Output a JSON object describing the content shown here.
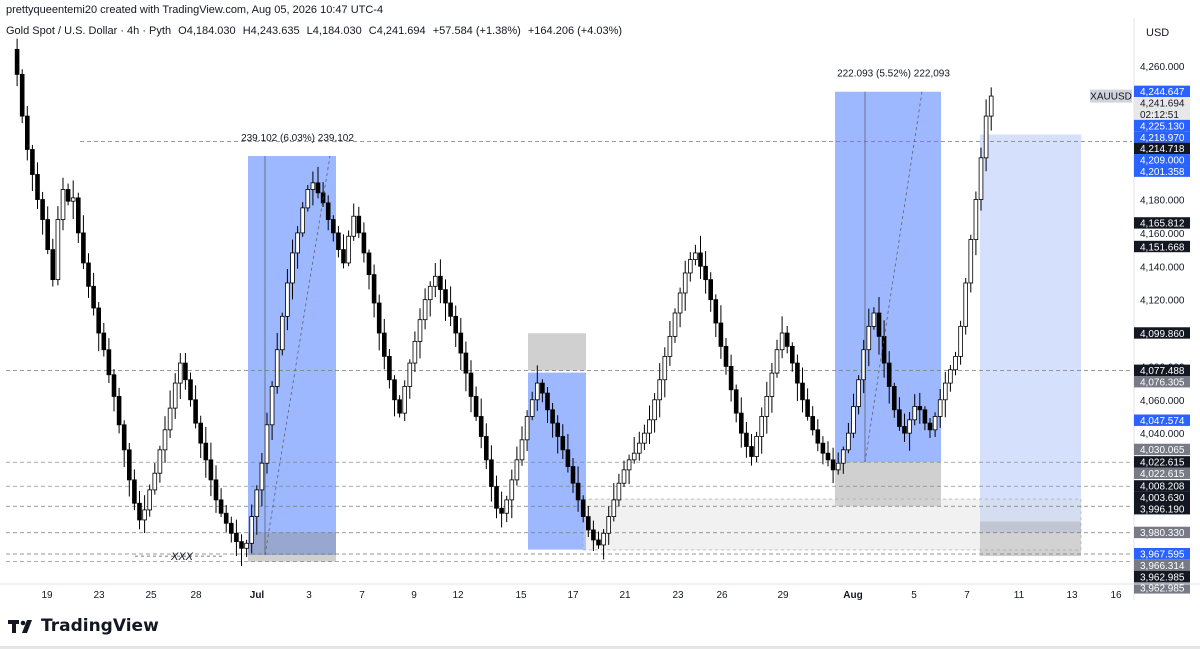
{
  "header": {
    "created_line": "prettyqueentemi20 created with TradingView.com, Aug 05, 2026 10:47 UTC-4",
    "symbol_title": "Gold Spot / U.S. Dollar · 4h · Pyth",
    "open": "O4,184.030",
    "high": "H4,243.635",
    "low": "L4,184.030",
    "close": "C4,241.694",
    "change": "+57.584 (+1.38%)",
    "extra_change": "+164.206 (+4.03%)"
  },
  "currency": "USD",
  "logo_text": "TradingView",
  "colors": {
    "up_candle": "#ffffff",
    "down_candle": "#000000",
    "candle_outline": "#000000",
    "range_blue": "#2962ff",
    "range_light_blue": "#b3c6fb",
    "zone_gray": "#8f8f8f",
    "label_blue": "#2962ff",
    "label_black": "#131722",
    "label_gray": "#787b86"
  },
  "chart_data": {
    "type": "candlestick",
    "timeframe": "4h",
    "symbol": "XAUUSD",
    "x_tick_labels": [
      "19",
      "23",
      "25",
      "28",
      "Jul",
      "3",
      "7",
      "9",
      "12",
      "15",
      "17",
      "21",
      "23",
      "26",
      "29",
      "Aug",
      "5",
      "7",
      "11",
      "13",
      "16"
    ],
    "y_axis": {
      "ticks": [
        4260,
        4240,
        4220,
        4200,
        4180,
        4160,
        4140,
        4120,
        4100,
        4080,
        4060,
        4040,
        4020,
        4000,
        3980
      ],
      "tick_labels": [
        "4,260.000",
        "4,240.000",
        "4,220.000",
        "4,200.000",
        "4,180.000",
        "4,160.000",
        "4,140.000",
        "4,120.000",
        "4,100.000",
        "4,080.000",
        "4,060.000",
        "4,040.000",
        "4,020.000",
        "4,000.000",
        "3,980.000"
      ],
      "range": [
        3952,
        4278
      ]
    },
    "price_labels": [
      {
        "value": 4244.647,
        "text": "4,244.647",
        "style": "blue"
      },
      {
        "value": 4241.694,
        "text": "4,241.694",
        "style": "current"
      },
      {
        "value": 4236.5,
        "text": "02:12:51",
        "style": "current"
      },
      {
        "value": 4225.13,
        "text": "4,225.130",
        "style": "blue"
      },
      {
        "value": 4218.97,
        "text": "4,218.970",
        "style": "blue"
      },
      {
        "value": 4214.718,
        "text": "4,214.718",
        "style": "black"
      },
      {
        "value": 4209.0,
        "text": "4,209.000",
        "style": "blue"
      },
      {
        "value": 4201.358,
        "text": "4,201.358",
        "style": "blue"
      },
      {
        "value": 4165.812,
        "text": "4,165.812",
        "style": "black"
      },
      {
        "value": 4151.668,
        "text": "4,151.668",
        "style": "black"
      },
      {
        "value": 4099.86,
        "text": "4,099.860",
        "style": "black"
      },
      {
        "value": 4077.488,
        "text": "4,077.488",
        "style": "black"
      },
      {
        "value": 4076.305,
        "text": "4,076.305",
        "style": "gray"
      },
      {
        "value": 4047.574,
        "text": "4,047.574",
        "style": "blue"
      },
      {
        "value": 4030.065,
        "text": "4,030.065",
        "style": "gray"
      },
      {
        "value": 4022.615,
        "text": "4,022.615",
        "style": "black"
      },
      {
        "value": 4022.615,
        "text": "4,022.615",
        "style": "gray"
      },
      {
        "value": 4008.208,
        "text": "4,008.208",
        "style": "black"
      },
      {
        "value": 4003.63,
        "text": "4,003.630",
        "style": "black"
      },
      {
        "value": 3996.19,
        "text": "3,996.190",
        "style": "black"
      },
      {
        "value": 3980.33,
        "text": "3,980.330",
        "style": "gray"
      },
      {
        "value": 3967.595,
        "text": "3,967.595",
        "style": "blue"
      },
      {
        "value": 3966.314,
        "text": "3,966.314",
        "style": "gray"
      },
      {
        "value": 3962.985,
        "text": "3,962.985",
        "style": "black"
      },
      {
        "value": 3962.985,
        "text": "3,962.985",
        "style": "gray"
      }
    ],
    "symbol_badge": "XAUUSD",
    "measurements": [
      {
        "text": "239.102 (6.03%) 239,102",
        "from_price": 3967.0,
        "to_price": 4206.1
      },
      {
        "text": "222.093 (5.52%) 222,093",
        "from_price": 4022.6,
        "to_price": 4244.6
      }
    ],
    "annotations": [
      {
        "text": "XXX",
        "price": 3966.3
      }
    ],
    "horizontal_levels": [
      4214.718,
      4077.488,
      4022.615,
      4008.208,
      3996.19,
      3980.33,
      3967.595,
      3962.985
    ],
    "rectangles": [
      {
        "kind": "range",
        "from_price": 3967.0,
        "to_price": 4206.1
      },
      {
        "kind": "zone",
        "from_price": 3962.985,
        "to_price": 3980.5
      },
      {
        "kind": "zone",
        "from_price": 4077.5,
        "to_price": 4099.86
      },
      {
        "kind": "range",
        "from_price": 3970.2,
        "to_price": 4076.3
      },
      {
        "kind": "range",
        "from_price": 4022.6,
        "to_price": 4244.6
      },
      {
        "kind": "zone",
        "from_price": 3996.19,
        "to_price": 4022.6
      },
      {
        "kind": "projection",
        "from_price": 3980.33,
        "to_price": 4218.97
      },
      {
        "kind": "zone",
        "from_price": 3966.3,
        "to_price": 3987.0
      },
      {
        "kind": "zone_light",
        "from_price": 3970.0,
        "to_price": 4000.5
      }
    ],
    "price_path": [
      4270,
      4255,
      4230,
      4210,
      4195,
      4180,
      4168,
      4150,
      4132,
      4168,
      4186,
      4179,
      4181,
      4160,
      4142,
      4128,
      4115,
      4100,
      4090,
      4075,
      4062,
      4045,
      4030,
      4012,
      3998,
      3988,
      3994,
      4006,
      4016,
      4030,
      4042,
      4055,
      4070,
      4082,
      4072,
      4060,
      4046,
      4034,
      4024,
      4012,
      4000,
      3992,
      3986,
      3980,
      3975,
      3971,
      3974,
      3990,
      4006,
      4022,
      4045,
      4068,
      4090,
      4110,
      4130,
      4148,
      4160,
      4175,
      4186,
      4190,
      4184,
      4178,
      4168,
      4160,
      4150,
      4142,
      4158,
      4170,
      4160,
      4148,
      4135,
      4118,
      4100,
      4086,
      4072,
      4060,
      4052,
      4068,
      4082,
      4095,
      4108,
      4120,
      4128,
      4134,
      4126,
      4118,
      4110,
      4100,
      4088,
      4076,
      4062,
      4050,
      4038,
      4024,
      4008,
      3995,
      3992,
      4000,
      4012,
      4024,
      4036,
      4050,
      4060,
      4070,
      4064,
      4054,
      4046,
      4038,
      4030,
      4020,
      4010,
      4000,
      3990,
      3982,
      3976,
      3973,
      3980,
      3990,
      4000,
      4010,
      4018,
      4024,
      4028,
      4034,
      4040,
      4048,
      4060,
      4072,
      4086,
      4098,
      4112,
      4124,
      4136,
      4144,
      4148,
      4140,
      4132,
      4120,
      4106,
      4092,
      4080,
      4066,
      4052,
      4040,
      4032,
      4026,
      4038,
      4050,
      4062,
      4076,
      4090,
      4100,
      4092,
      4082,
      4070,
      4060,
      4050,
      4042,
      4034,
      4028,
      4024,
      4018,
      4022,
      4030,
      4040,
      4056,
      4072,
      4090,
      4104,
      4112,
      4098,
      4082,
      4068,
      4054,
      4044,
      4040,
      4048,
      4056,
      4054,
      4046,
      4042,
      4050,
      4060,
      4070,
      4078,
      4086,
      4104,
      4130,
      4156,
      4180,
      4205,
      4230,
      4242
    ]
  }
}
